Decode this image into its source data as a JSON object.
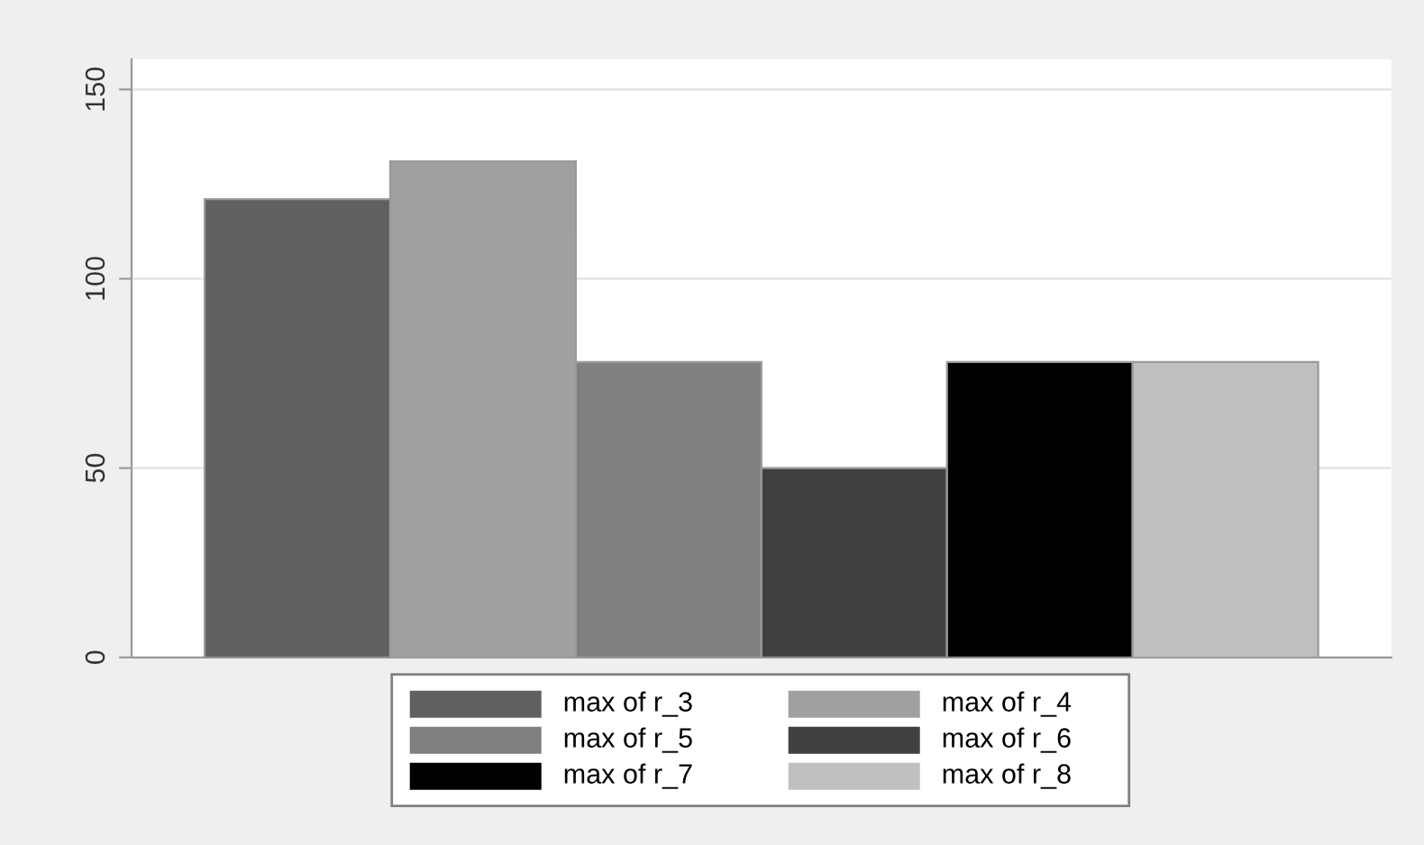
{
  "chart_data": {
    "type": "bar",
    "categories": [
      null
    ],
    "series": [
      {
        "name": "max of r_3",
        "color": "#606060",
        "values": [
          121
        ]
      },
      {
        "name": "max of r_4",
        "color": "#a0a0a0",
        "values": [
          131
        ]
      },
      {
        "name": "max of r_5",
        "color": "#808080",
        "values": [
          78
        ]
      },
      {
        "name": "max of r_6",
        "color": "#404040",
        "values": [
          50
        ]
      },
      {
        "name": "max of r_7",
        "color": "#000000",
        "values": [
          78
        ]
      },
      {
        "name": "max of r_8",
        "color": "#c0c0c0",
        "values": [
          78
        ]
      }
    ],
    "ylim": [
      0,
      158
    ],
    "yticks": [
      0,
      50,
      100,
      150
    ],
    "grid": "y",
    "legend": "bottom"
  }
}
